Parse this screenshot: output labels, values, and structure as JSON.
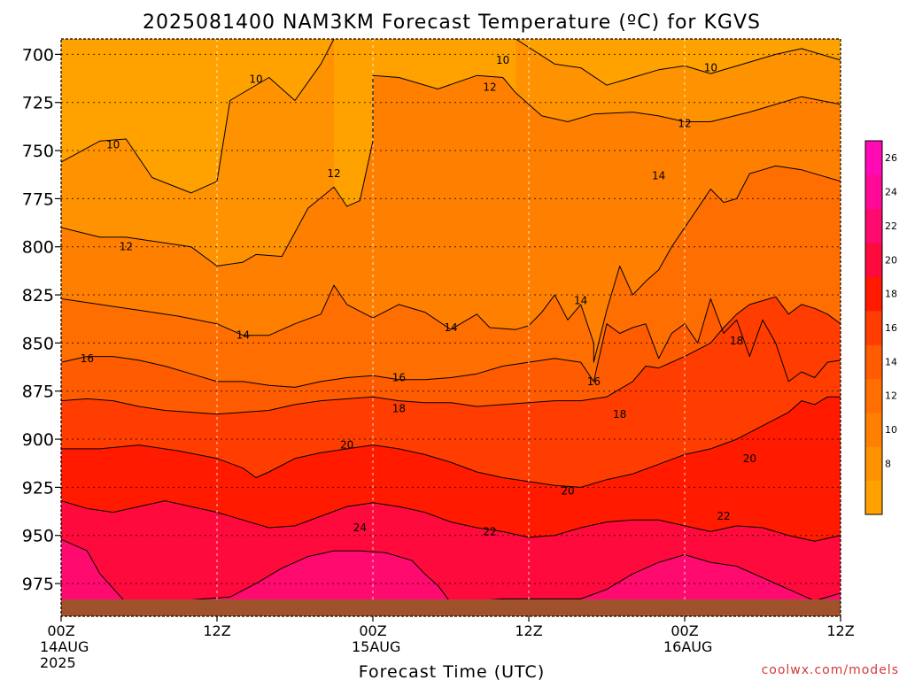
{
  "chart_data": {
    "type": "heatmap",
    "title": "2025081400 NAM3KM Forecast Temperature (ºC) for KGVS",
    "xlabel": "Forecast Time (UTC)",
    "ylabel": "",
    "watermark": "coolwx.com/models",
    "x_range_hours": [
      0,
      60
    ],
    "y_range_hPa": [
      692,
      992
    ],
    "y_ticks": [
      700,
      725,
      750,
      775,
      800,
      825,
      850,
      875,
      900,
      925,
      950,
      975
    ],
    "x_ticks": [
      {
        "hour": 0,
        "lines": [
          "00Z",
          "14AUG",
          "2025"
        ]
      },
      {
        "hour": 12,
        "lines": [
          "12Z"
        ]
      },
      {
        "hour": 24,
        "lines": [
          "00Z",
          "15AUG"
        ]
      },
      {
        "hour": 36,
        "lines": [
          "12Z"
        ]
      },
      {
        "hour": 48,
        "lines": [
          "00Z",
          "16AUG"
        ]
      },
      {
        "hour": 60,
        "lines": [
          "12Z"
        ]
      }
    ],
    "colorbar": {
      "levels": [
        6,
        8,
        10,
        12,
        14,
        16,
        18,
        20,
        22,
        24,
        26,
        28
      ],
      "labels": [
        8,
        10,
        12,
        14,
        16,
        18,
        20,
        22,
        24,
        26
      ],
      "colors": [
        "#FFB300",
        "#FFA200",
        "#FF9200",
        "#FF8000",
        "#FF6E00",
        "#FF5B00",
        "#FF3D00",
        "#FF1A00",
        "#FF0A3C",
        "#FF0A6E",
        "#FF0A96",
        "#FF0AB4"
      ]
    },
    "ground_color": "#A0522D",
    "contours": [
      {
        "level": 10,
        "p": [
          [
            0,
            756
          ],
          [
            3,
            745
          ],
          [
            5,
            744
          ],
          [
            7,
            764
          ],
          [
            10,
            772
          ],
          [
            12,
            766
          ],
          [
            13,
            724
          ],
          [
            16,
            712
          ],
          [
            18,
            724
          ],
          [
            20,
            705
          ],
          [
            21,
            692
          ]
        ]
      },
      {
        "level": 10,
        "p": [
          [
            35,
            692
          ],
          [
            38,
            705
          ],
          [
            40,
            707
          ],
          [
            42,
            716
          ],
          [
            44,
            712
          ],
          [
            46,
            708
          ],
          [
            48,
            706
          ],
          [
            50,
            710
          ],
          [
            53,
            704
          ],
          [
            55,
            700
          ],
          [
            57,
            697
          ],
          [
            60,
            703
          ]
        ]
      },
      {
        "level": 12,
        "p": [
          [
            0,
            790
          ],
          [
            3,
            795
          ],
          [
            5,
            795
          ],
          [
            7,
            797
          ],
          [
            10,
            800
          ],
          [
            12,
            810
          ],
          [
            14,
            808
          ],
          [
            15,
            804
          ],
          [
            17,
            805
          ],
          [
            19,
            780
          ],
          [
            21,
            769
          ],
          [
            22,
            779
          ],
          [
            23,
            776
          ],
          [
            24,
            745
          ],
          [
            24,
            711
          ],
          [
            26,
            712
          ],
          [
            29,
            718
          ],
          [
            32,
            711
          ],
          [
            34,
            712
          ],
          [
            35,
            720
          ],
          [
            37,
            732
          ],
          [
            39,
            735
          ],
          [
            41,
            731
          ],
          [
            44,
            730
          ],
          [
            46,
            732
          ],
          [
            48,
            735
          ],
          [
            50,
            735
          ],
          [
            53,
            730
          ],
          [
            55,
            726
          ],
          [
            57,
            722
          ],
          [
            60,
            726
          ]
        ]
      },
      {
        "level": 14,
        "p": [
          [
            0,
            827
          ],
          [
            3,
            830
          ],
          [
            6,
            833
          ],
          [
            9,
            836
          ],
          [
            12,
            840
          ],
          [
            14,
            846
          ],
          [
            16,
            846
          ],
          [
            18,
            840
          ],
          [
            20,
            835
          ],
          [
            21,
            820
          ],
          [
            22,
            830
          ],
          [
            24,
            837
          ],
          [
            26,
            830
          ],
          [
            28,
            834
          ],
          [
            30,
            843
          ],
          [
            32,
            835
          ],
          [
            33,
            842
          ],
          [
            35,
            843
          ],
          [
            36,
            841
          ],
          [
            37,
            834
          ],
          [
            38,
            825
          ],
          [
            39,
            838
          ],
          [
            40,
            830
          ],
          [
            41,
            850
          ],
          [
            41,
            860
          ],
          [
            42,
            833
          ],
          [
            43,
            810
          ],
          [
            44,
            825
          ],
          [
            45,
            818
          ],
          [
            46,
            812
          ],
          [
            47,
            800
          ],
          [
            48,
            790
          ],
          [
            49,
            780
          ],
          [
            50,
            770
          ],
          [
            51,
            777
          ],
          [
            52,
            775
          ],
          [
            53,
            762
          ],
          [
            54,
            760
          ],
          [
            55,
            758
          ],
          [
            57,
            760
          ],
          [
            60,
            766
          ]
        ]
      },
      {
        "level": 16,
        "p": [
          [
            0,
            860
          ],
          [
            2,
            857
          ],
          [
            4,
            857
          ],
          [
            6,
            859
          ],
          [
            8,
            862
          ],
          [
            10,
            866
          ],
          [
            12,
            870
          ],
          [
            14,
            870
          ],
          [
            16,
            872
          ],
          [
            18,
            873
          ],
          [
            20,
            870
          ],
          [
            22,
            868
          ],
          [
            24,
            867
          ],
          [
            26,
            869
          ],
          [
            28,
            869
          ],
          [
            30,
            868
          ],
          [
            32,
            866
          ],
          [
            34,
            862
          ],
          [
            36,
            860
          ],
          [
            38,
            858
          ],
          [
            40,
            860
          ],
          [
            41,
            870
          ],
          [
            42,
            840
          ],
          [
            43,
            845
          ],
          [
            44,
            842
          ],
          [
            45,
            840
          ],
          [
            46,
            858
          ],
          [
            47,
            845
          ],
          [
            48,
            840
          ],
          [
            49,
            850
          ],
          [
            50,
            827
          ],
          [
            51,
            845
          ],
          [
            52,
            838
          ],
          [
            53,
            857
          ],
          [
            54,
            838
          ],
          [
            55,
            850
          ],
          [
            56,
            870
          ],
          [
            57,
            865
          ],
          [
            58,
            868
          ],
          [
            59,
            860
          ],
          [
            60,
            859
          ]
        ]
      },
      {
        "level": 18,
        "p": [
          [
            0,
            880
          ],
          [
            2,
            879
          ],
          [
            4,
            880
          ],
          [
            6,
            883
          ],
          [
            8,
            885
          ],
          [
            10,
            886
          ],
          [
            12,
            887
          ],
          [
            14,
            886
          ],
          [
            16,
            885
          ],
          [
            18,
            882
          ],
          [
            20,
            880
          ],
          [
            22,
            879
          ],
          [
            24,
            878
          ],
          [
            26,
            880
          ],
          [
            28,
            881
          ],
          [
            30,
            881
          ],
          [
            32,
            883
          ],
          [
            34,
            882
          ],
          [
            36,
            881
          ],
          [
            38,
            880
          ],
          [
            40,
            880
          ],
          [
            42,
            878
          ],
          [
            44,
            870
          ],
          [
            45,
            862
          ],
          [
            46,
            863
          ],
          [
            48,
            857
          ],
          [
            50,
            850
          ],
          [
            51,
            842
          ],
          [
            52,
            835
          ],
          [
            53,
            830
          ],
          [
            54,
            828
          ],
          [
            55,
            826
          ],
          [
            56,
            835
          ],
          [
            57,
            830
          ],
          [
            58,
            832
          ],
          [
            59,
            835
          ],
          [
            60,
            840
          ]
        ]
      },
      {
        "level": 20,
        "p": [
          [
            0,
            905
          ],
          [
            3,
            905
          ],
          [
            6,
            903
          ],
          [
            9,
            906
          ],
          [
            12,
            910
          ],
          [
            14,
            915
          ],
          [
            15,
            920
          ],
          [
            16,
            917
          ],
          [
            18,
            910
          ],
          [
            20,
            907
          ],
          [
            22,
            905
          ],
          [
            24,
            903
          ],
          [
            26,
            905
          ],
          [
            28,
            908
          ],
          [
            30,
            912
          ],
          [
            32,
            917
          ],
          [
            34,
            920
          ],
          [
            36,
            922
          ],
          [
            38,
            924
          ],
          [
            40,
            925
          ],
          [
            42,
            921
          ],
          [
            44,
            918
          ],
          [
            46,
            913
          ],
          [
            48,
            908
          ],
          [
            50,
            905
          ],
          [
            52,
            900
          ],
          [
            54,
            893
          ],
          [
            56,
            886
          ],
          [
            57,
            880
          ],
          [
            58,
            882
          ],
          [
            59,
            878
          ],
          [
            60,
            878
          ]
        ]
      },
      {
        "level": 22,
        "p": [
          [
            0,
            932
          ],
          [
            2,
            936
          ],
          [
            4,
            938
          ],
          [
            6,
            935
          ],
          [
            8,
            932
          ],
          [
            10,
            935
          ],
          [
            12,
            938
          ],
          [
            14,
            942
          ],
          [
            16,
            946
          ],
          [
            18,
            945
          ],
          [
            20,
            940
          ],
          [
            22,
            935
          ],
          [
            24,
            933
          ],
          [
            26,
            935
          ],
          [
            28,
            938
          ],
          [
            30,
            943
          ],
          [
            32,
            946
          ],
          [
            34,
            948
          ],
          [
            36,
            951
          ],
          [
            38,
            950
          ],
          [
            40,
            946
          ],
          [
            42,
            943
          ],
          [
            44,
            942
          ],
          [
            46,
            942
          ],
          [
            48,
            945
          ],
          [
            50,
            948
          ],
          [
            52,
            945
          ],
          [
            54,
            946
          ],
          [
            56,
            950
          ],
          [
            58,
            953
          ],
          [
            60,
            950
          ]
        ]
      },
      {
        "level": 24,
        "p": [
          [
            0,
            952
          ],
          [
            2,
            958
          ],
          [
            3,
            970
          ],
          [
            5,
            985
          ],
          [
            7,
            984
          ],
          [
            9,
            984
          ],
          [
            11,
            983
          ],
          [
            13,
            982
          ],
          [
            15,
            975
          ],
          [
            17,
            967
          ],
          [
            19,
            961
          ],
          [
            21,
            958
          ],
          [
            23,
            958
          ],
          [
            25,
            959
          ],
          [
            27,
            963
          ],
          [
            28,
            970
          ],
          [
            29,
            976
          ],
          [
            30,
            985
          ],
          [
            32,
            984
          ],
          [
            34,
            983
          ],
          [
            36,
            983
          ],
          [
            38,
            983
          ],
          [
            40,
            983
          ],
          [
            42,
            978
          ],
          [
            44,
            970
          ],
          [
            46,
            964
          ],
          [
            48,
            960
          ],
          [
            50,
            964
          ],
          [
            52,
            966
          ],
          [
            54,
            972
          ],
          [
            56,
            978
          ],
          [
            58,
            984
          ],
          [
            60,
            980
          ]
        ]
      }
    ],
    "labels": [
      {
        "text": "10",
        "hour": 4,
        "hPa": 747
      },
      {
        "text": "10",
        "hour": 15,
        "hPa": 713
      },
      {
        "text": "10",
        "hour": 34,
        "hPa": 703
      },
      {
        "text": "10",
        "hour": 50,
        "hPa": 707
      },
      {
        "text": "12",
        "hour": 5,
        "hPa": 800
      },
      {
        "text": "12",
        "hour": 21,
        "hPa": 762
      },
      {
        "text": "12",
        "hour": 33,
        "hPa": 717
      },
      {
        "text": "12",
        "hour": 48,
        "hPa": 736
      },
      {
        "text": "14",
        "hour": 14,
        "hPa": 846
      },
      {
        "text": "14",
        "hour": 30,
        "hPa": 842
      },
      {
        "text": "14",
        "hour": 40,
        "hPa": 828
      },
      {
        "text": "14",
        "hour": 46,
        "hPa": 763
      },
      {
        "text": "16",
        "hour": 2,
        "hPa": 858
      },
      {
        "text": "16",
        "hour": 26,
        "hPa": 868
      },
      {
        "text": "16",
        "hour": 41,
        "hPa": 870
      },
      {
        "text": "18",
        "hour": 26,
        "hPa": 884
      },
      {
        "text": "18",
        "hour": 43,
        "hPa": 887
      },
      {
        "text": "18",
        "hour": 52,
        "hPa": 849
      },
      {
        "text": "20",
        "hour": 22,
        "hPa": 903
      },
      {
        "text": "20",
        "hour": 39,
        "hPa": 927
      },
      {
        "text": "20",
        "hour": 53,
        "hPa": 910
      },
      {
        "text": "22",
        "hour": 33,
        "hPa": 948
      },
      {
        "text": "22",
        "hour": 51,
        "hPa": 940
      },
      {
        "text": "24",
        "hour": 23,
        "hPa": 946
      }
    ]
  }
}
